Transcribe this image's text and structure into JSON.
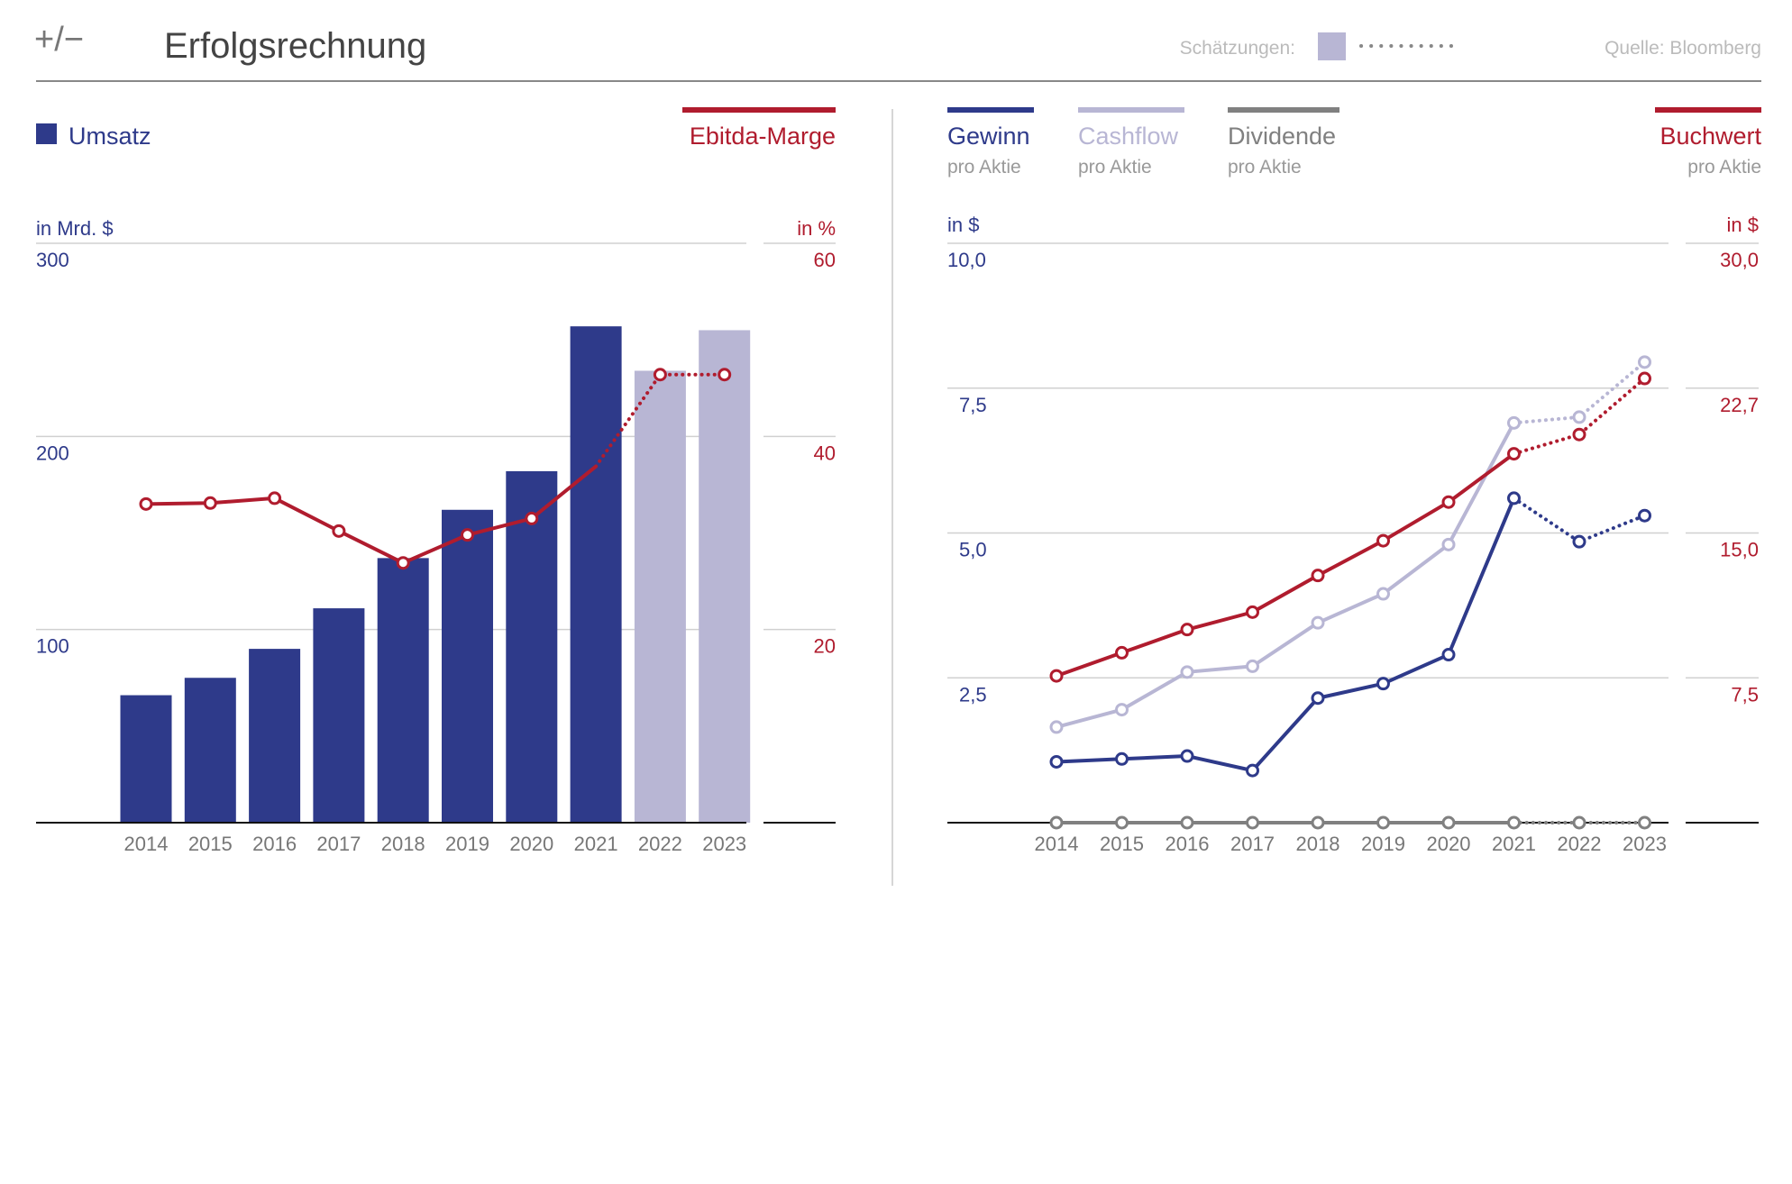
{
  "header": {
    "logo": "+/−",
    "title": "Erfolgsrechnung",
    "estimates_label": "Schätzungen:",
    "source": "Quelle: Bloomberg"
  },
  "colors": {
    "blue": "#2e3a8a",
    "estimate": "#b8b6d4",
    "red": "#b01c2e",
    "gray": "#808080",
    "axis_gray": "#777777",
    "grid": "#d0d0d0"
  },
  "chart_data": [
    {
      "type": "bar",
      "categories": [
        "2014",
        "2015",
        "2016",
        "2017",
        "2018",
        "2019",
        "2020",
        "2021",
        "2022",
        "2023"
      ],
      "estimate_from_index": 8,
      "series": [
        {
          "name": "Umsatz",
          "axis": "left",
          "kind": "bar",
          "values": [
            66,
            75,
            90,
            111,
            137,
            162,
            182,
            257,
            234,
            255
          ]
        },
        {
          "name": "Ebitda-Marge",
          "axis": "right",
          "kind": "line",
          "values": [
            33.0,
            33.1,
            33.6,
            30.2,
            26.9,
            29.8,
            31.5,
            36.9,
            46.4,
            46.4
          ]
        }
      ],
      "ylabel_left": "in Mrd. $",
      "ylabel_right": "in %",
      "ylim_left": [
        0,
        300
      ],
      "ylim_right": [
        0,
        60
      ],
      "yticks_left": [
        "100",
        "200",
        "300"
      ],
      "yticks_right": [
        "20",
        "40",
        "60"
      ],
      "grid": true
    },
    {
      "type": "line",
      "categories": [
        "2014",
        "2015",
        "2016",
        "2017",
        "2018",
        "2019",
        "2020",
        "2021",
        "2022",
        "2023"
      ],
      "estimate_from_index": 8,
      "series": [
        {
          "name": "Gewinn",
          "sub": "pro Aktie",
          "axis": "left",
          "color_key": "blue",
          "values": [
            2.1,
            2.2,
            2.3,
            1.8,
            4.3,
            4.8,
            5.8,
            11.2,
            9.7,
            10.6
          ]
        },
        {
          "name": "Cashflow",
          "sub": "pro Aktie",
          "axis": "left",
          "color_key": "estimate",
          "values": [
            3.3,
            3.9,
            5.2,
            5.4,
            6.9,
            7.9,
            9.6,
            13.8,
            14.0,
            15.9
          ]
        },
        {
          "name": "Dividende",
          "sub": "pro Aktie",
          "axis": "left",
          "color_key": "gray",
          "values": [
            0,
            0,
            0,
            0,
            0,
            0,
            0,
            0,
            0,
            0
          ]
        },
        {
          "name": "Buchwert",
          "sub": "pro Aktie",
          "axis": "right",
          "color_key": "red",
          "values": [
            7.6,
            8.8,
            10.0,
            10.9,
            12.8,
            14.6,
            16.6,
            19.1,
            20.1,
            23.0
          ]
        }
      ],
      "ylabel_left": "in $",
      "ylabel_right": "in $",
      "ylim_left": [
        0,
        20
      ],
      "ylim_right": [
        0,
        30
      ],
      "yticks_left": [
        "2,5",
        "5,0",
        "7,5",
        "10,0"
      ],
      "yticks_right": [
        "7,5",
        "15,0",
        "22,7",
        "30,0"
      ],
      "grid": true
    }
  ]
}
